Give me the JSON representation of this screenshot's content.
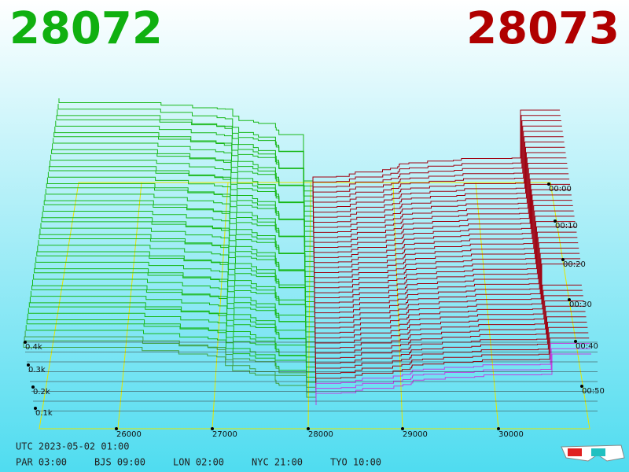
{
  "header": {
    "bid": "28072",
    "ask": "28073"
  },
  "price_axis": {
    "labels": [
      "26000",
      "27000",
      "28000",
      "29000",
      "30000"
    ]
  },
  "time_axis": {
    "labels": [
      "00:00",
      "00:10",
      "00:20",
      "00:30",
      "00:40",
      "00:50"
    ]
  },
  "depth_axis": {
    "labels": [
      "0.4k",
      "0.3k",
      "0.2k",
      "0.1k"
    ]
  },
  "footer": {
    "utc": "UTC 2023-05-02 01:00",
    "zones": [
      "PAR 03:00",
      "BJS 09:00",
      "LON 02:00",
      "NYC 21:00",
      "TYO 10:00"
    ]
  }
}
